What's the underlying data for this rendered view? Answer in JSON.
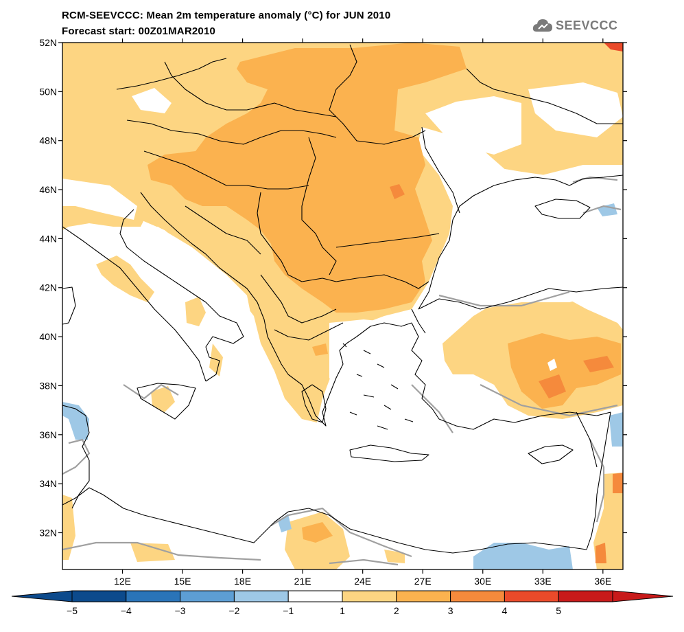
{
  "title_line1": "RCM-SEEVCCC: Mean 2m temperature anomaly (°C) for JUN 2010",
  "title_line2": "Forecast start: 00Z01MAR2010",
  "logo_text": "SEEVCCC",
  "map": {
    "lon_range": [
      9.0,
      37.0
    ],
    "lat_range": [
      30.5,
      52.0
    ],
    "lat_ticks": [
      "32N",
      "34N",
      "36N",
      "38N",
      "40N",
      "42N",
      "44N",
      "46N",
      "48N",
      "50N",
      "52N"
    ],
    "lat_tick_values": [
      32,
      34,
      36,
      38,
      40,
      42,
      44,
      46,
      48,
      50,
      52
    ],
    "lon_ticks": [
      "12E",
      "15E",
      "18E",
      "21E",
      "24E",
      "27E",
      "30E",
      "33E",
      "36E"
    ],
    "lon_tick_values": [
      12,
      15,
      18,
      21,
      24,
      27,
      30,
      33,
      36
    ]
  },
  "colorbar": {
    "labels": [
      "−5",
      "−4",
      "−3",
      "−2",
      "−1",
      "1",
      "2",
      "3",
      "4",
      "5"
    ],
    "colors": [
      "#0c4a8c",
      "#2a74b8",
      "#5d9ed4",
      "#9ec8e6",
      "#ffffff",
      "#fdd582",
      "#fbb24f",
      "#f58a3c",
      "#ea4a2a",
      "#c81a1a"
    ]
  },
  "colors": {
    "light_orange": "#fdd582",
    "orange": "#fbb24f",
    "dark_orange": "#f58a3c",
    "light_blue": "#9ec8e6",
    "coastline": "#000000",
    "contour_gray": "#a0a0a0"
  }
}
